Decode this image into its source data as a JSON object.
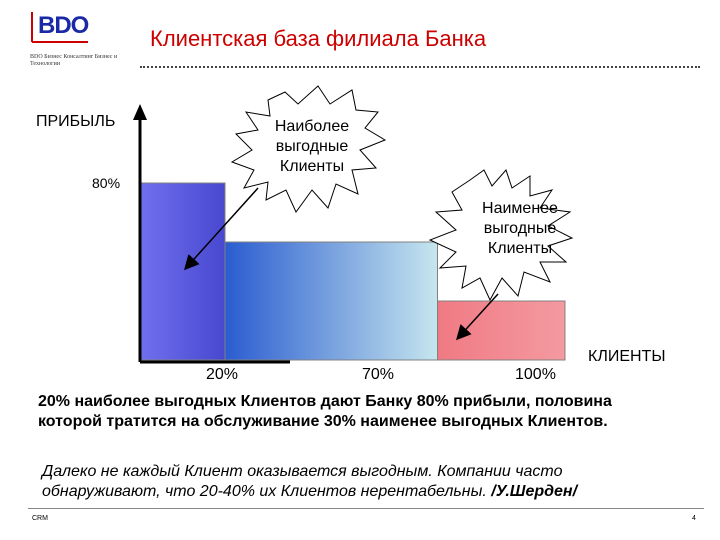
{
  "header": {
    "logo_text": "BDO",
    "logo_subtitle": "BDO Бизнес Консалтинг Бизнес и Технологии",
    "title": "Клиентская база  филиала Банка"
  },
  "chart_data": {
    "type": "bar",
    "ylabel": "ПРИБЫЛЬ",
    "xlabel": "КЛИЕНТЫ",
    "y_tick_labels": [
      "80%"
    ],
    "x_tick_labels": [
      "20%",
      "70%",
      "100%"
    ],
    "segments": [
      {
        "x_start": 0,
        "x_end": 20,
        "level": 3
      },
      {
        "x_start": 20,
        "x_end": 70,
        "level": 2
      },
      {
        "x_start": 70,
        "x_end": 100,
        "level": 1
      }
    ],
    "colors": {
      "most_profitable": "#5e5ee0",
      "middle": "#4a86d8",
      "least_profitable": "#f08080"
    },
    "callouts": [
      {
        "text": "Наиболее выгодные Клиенты"
      },
      {
        "text": "Наименее выгодные Клиенты"
      }
    ]
  },
  "text": {
    "summary": "20% наиболее выгодных Клиентов дают Банку 80% прибыли, половина которой тратится на обслуживание 30% наименее выгодных Клиентов.",
    "quote": "Далеко не каждый Клиент оказывается выгодным. Компании часто обнаруживают, что 20-40% их Клиентов нерентабельны.",
    "quote_author": "/У.Шерден/"
  },
  "footer": {
    "left": "CRM",
    "page_number": "4"
  }
}
